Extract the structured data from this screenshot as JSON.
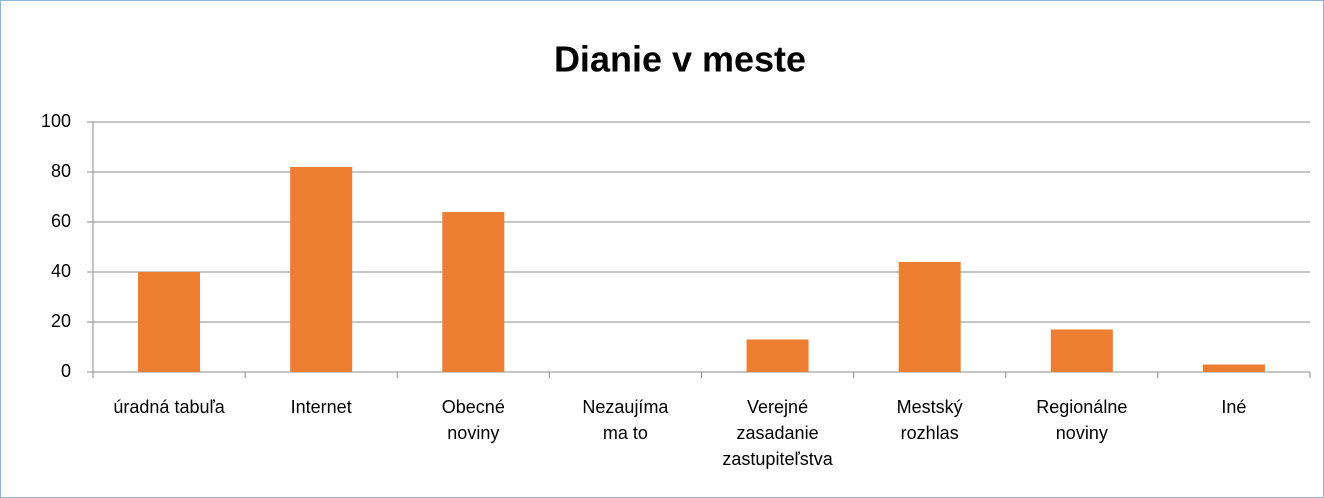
{
  "chart_data": {
    "type": "bar",
    "title": "Dianie v meste",
    "categories": [
      "úradná tabuľa",
      "Internet",
      "Obecné\nnoviny",
      "Nezaujíma\nma to",
      "Verejné\nzasadanie\nzastupiteľstva",
      "Mestský\nrozhlas",
      "Regionálne\nnoviny",
      "Iné"
    ],
    "values": [
      40,
      82,
      64,
      0,
      13,
      44,
      17,
      3
    ],
    "color": "#ed7d31",
    "ylim": [
      0,
      100
    ],
    "yticks": [
      0,
      20,
      40,
      60,
      80,
      100
    ],
    "grid": true
  }
}
